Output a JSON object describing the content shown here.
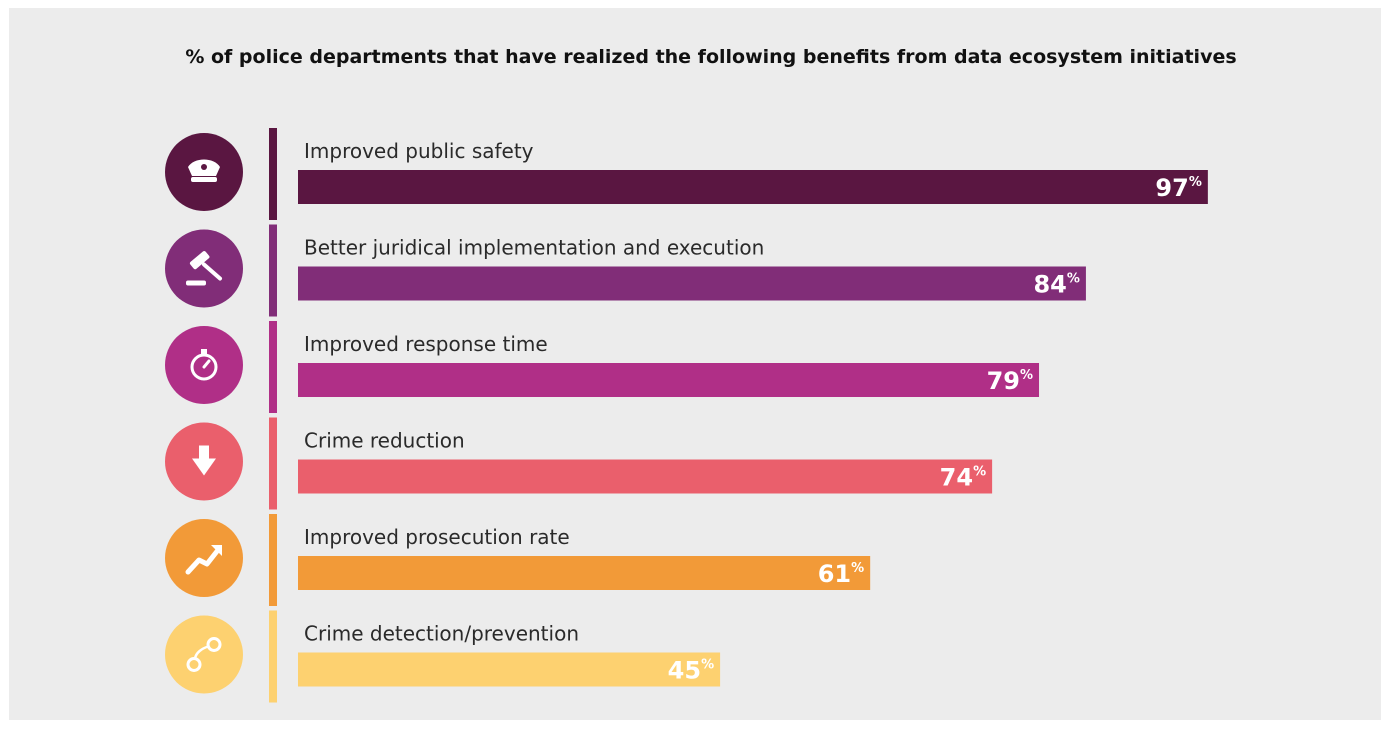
{
  "chart_data": {
    "type": "bar",
    "orientation": "horizontal",
    "title": "% of police departments that have realized the following benefits from data ecosystem initiatives",
    "value_unit": "%",
    "xlim": [
      0,
      100
    ],
    "grid": false,
    "legend": "none",
    "categories": [
      "Improved public safety",
      "Better juridical implementation and execution",
      "Improved response time",
      "Crime reduction",
      "Improved prosecution rate",
      "Crime detection/prevention"
    ],
    "values": [
      97,
      84,
      79,
      74,
      61,
      45
    ],
    "colors": [
      "#5a1641",
      "#812d78",
      "#b02f87",
      "#ea5f6c",
      "#f29a38",
      "#fdd170"
    ],
    "icons": [
      "police-cap-icon",
      "gavel-icon",
      "stopwatch-icon",
      "down-arrow-icon",
      "trend-up-icon",
      "handcuffs-icon"
    ]
  }
}
